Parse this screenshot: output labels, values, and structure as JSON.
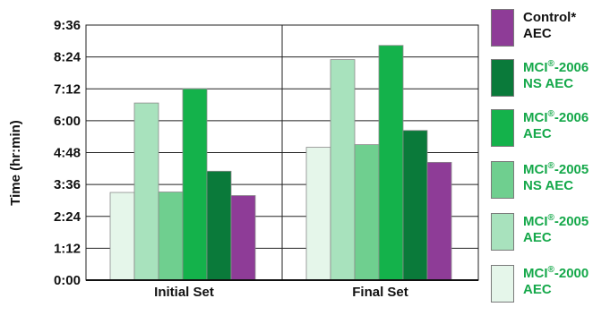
{
  "chart_data": {
    "type": "bar",
    "ylabel": "Time (hr:min)",
    "xlabel": "",
    "ylim": [
      0,
      576
    ],
    "yticks": [
      {
        "value": 0,
        "label": "0:00"
      },
      {
        "value": 72,
        "label": "1:12"
      },
      {
        "value": 144,
        "label": "2:24"
      },
      {
        "value": 216,
        "label": "3:36"
      },
      {
        "value": 288,
        "label": "4:48"
      },
      {
        "value": 360,
        "label": "6:00"
      },
      {
        "value": 432,
        "label": "7:12"
      },
      {
        "value": 504,
        "label": "8:24"
      },
      {
        "value": 576,
        "label": "9:36"
      }
    ],
    "grid": "horizontal and vertical",
    "legend_position": "right",
    "categories": [
      "Initial Set",
      "Final Set"
    ],
    "series": [
      {
        "name": "MCI®-2000 AEC",
        "color": "#e5f6ea",
        "values": [
          198,
          300
        ]
      },
      {
        "name": "MCI®-2005 AEC",
        "color": "#a8e2bd",
        "values": [
          400,
          498
        ]
      },
      {
        "name": "MCI®-2005 NS AEC",
        "color": "#6fcf8f",
        "values": [
          199,
          306
        ]
      },
      {
        "name": "MCI®-2006 AEC",
        "color": "#14b24b",
        "values": [
          432,
          530
        ]
      },
      {
        "name": "MCI®-2006 NS AEC",
        "color": "#0a7a3a",
        "values": [
          246,
          338
        ]
      },
      {
        "name": "Control* AEC",
        "color": "#8e3c97",
        "values": [
          191,
          266
        ]
      }
    ]
  },
  "legend": [
    {
      "line1": "Control*",
      "line2": "AEC",
      "color": "#8e3c97",
      "text_color": "#111111"
    },
    {
      "line1": "MCI",
      "sup": "®",
      "line1b": "-2006",
      "line2": "NS AEC",
      "color": "#0a7a3a",
      "text_color": "#15a84a"
    },
    {
      "line1": "MCI",
      "sup": "®",
      "line1b": "-2006",
      "line2": "AEC",
      "color": "#14b24b",
      "text_color": "#15a84a"
    },
    {
      "line1": "MCI",
      "sup": "®",
      "line1b": "-2005",
      "line2": "NS AEC",
      "color": "#6fcf8f",
      "text_color": "#15a84a"
    },
    {
      "line1": "MCI",
      "sup": "®",
      "line1b": "-2005",
      "line2": "AEC",
      "color": "#a8e2bd",
      "text_color": "#15a84a"
    },
    {
      "line1": "MCI",
      "sup": "®",
      "line1b": "-2000",
      "line2": "AEC",
      "color": "#e5f6ea",
      "text_color": "#15a84a"
    }
  ]
}
